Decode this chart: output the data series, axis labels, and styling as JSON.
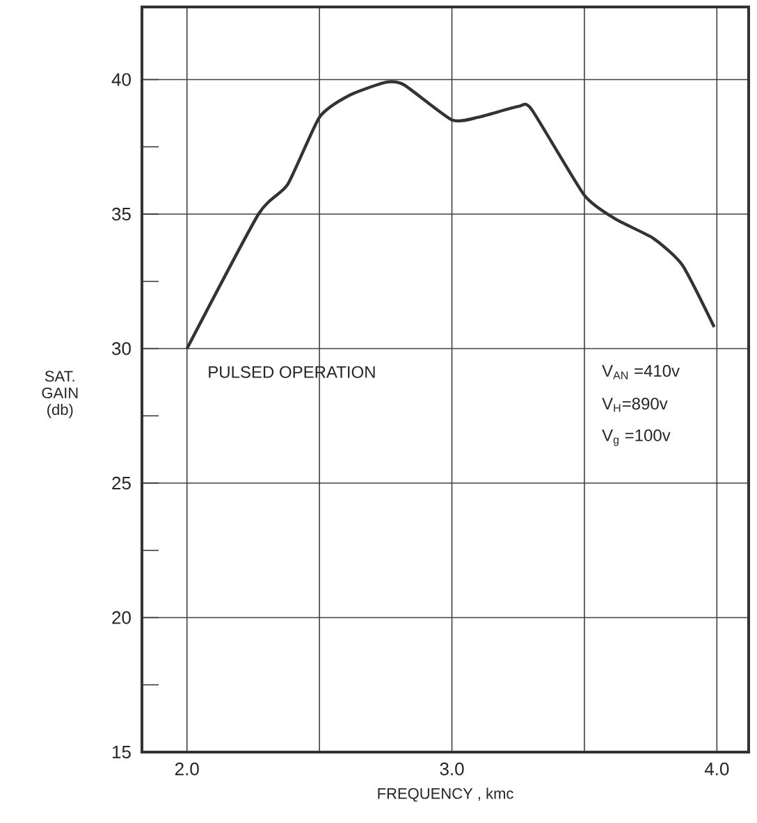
{
  "chart_data": {
    "type": "line",
    "xlabel": "FREQUENCY , kmc",
    "ylabel": "SAT. GAIN (db)",
    "x": [
      2.0,
      2.27,
      2.38,
      2.5,
      2.61,
      2.75,
      2.82,
      3.0,
      3.1,
      3.25,
      3.3,
      3.5,
      3.62,
      3.76,
      3.87,
      3.99
    ],
    "series": [
      {
        "color": "#333333",
        "values": [
          30.0,
          35.0,
          36.1,
          38.6,
          39.4,
          39.9,
          39.8,
          38.5,
          38.6,
          39.0,
          38.9,
          35.7,
          34.8,
          34.1,
          33.1,
          30.8
        ]
      }
    ],
    "xlim": [
      1.83,
      4.12
    ],
    "ylim": [
      15,
      42.7
    ],
    "xticks": [
      {
        "value": 2.0,
        "label": "2.0"
      },
      {
        "value": 2.5,
        "label": null
      },
      {
        "value": 3.0,
        "label": "3.0"
      },
      {
        "value": 3.5,
        "label": null
      },
      {
        "value": 4.0,
        "label": "4.0"
      }
    ],
    "yticks": [
      15,
      {
        "value": 17.5,
        "label": null
      },
      20,
      {
        "value": 22.5,
        "label": null
      },
      25,
      {
        "value": 27.5,
        "label": null
      },
      30,
      {
        "value": 32.5,
        "label": null
      },
      35,
      {
        "value": 37.5,
        "label": null
      },
      40
    ],
    "grid": true,
    "marker": "none",
    "line_style": "solid",
    "annotations": [
      "PULSED OPERATION",
      "V$_{AN}$ =410v",
      "V$_{H}$=890v",
      "V$_{g}$ =100v"
    ]
  }
}
